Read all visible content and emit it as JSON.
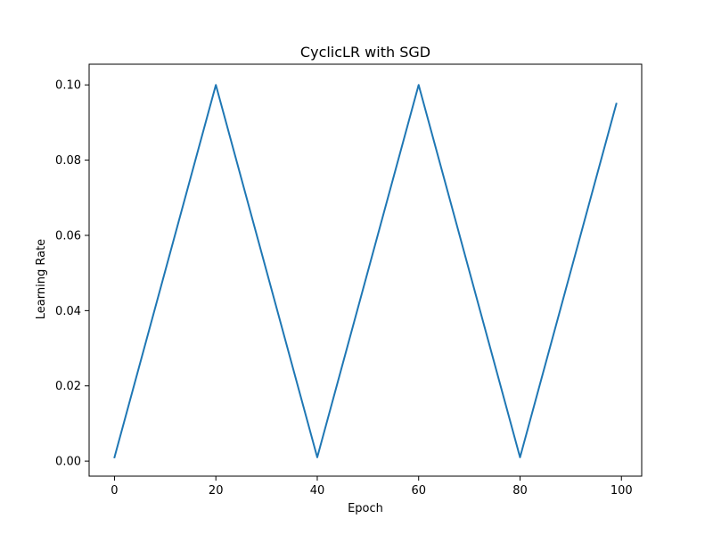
{
  "chart_data": {
    "type": "line",
    "title": "CyclicLR with SGD",
    "xlabel": "Epoch",
    "ylabel": "Learning Rate",
    "xlim": [
      -5,
      104
    ],
    "ylim": [
      -0.004,
      0.1055
    ],
    "x_ticks": [
      0,
      20,
      40,
      60,
      80,
      100
    ],
    "x_tick_labels": [
      "0",
      "20",
      "40",
      "60",
      "80",
      "100"
    ],
    "y_ticks": [
      0.0,
      0.02,
      0.04,
      0.06,
      0.08,
      0.1
    ],
    "y_tick_labels": [
      "0.00",
      "0.02",
      "0.04",
      "0.06",
      "0.08",
      "0.10"
    ],
    "grid": false,
    "series": [
      {
        "color": "#1f77b4",
        "x": [
          0,
          20,
          40,
          60,
          80,
          99
        ],
        "y": [
          0.001,
          0.1,
          0.001,
          0.1,
          0.001,
          0.095
        ]
      }
    ]
  }
}
